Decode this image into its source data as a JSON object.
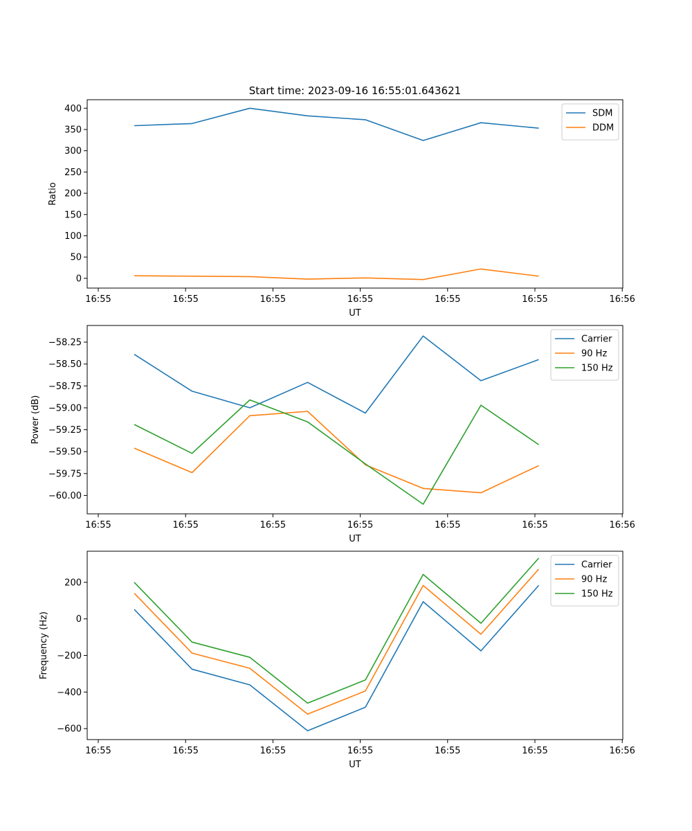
{
  "title": "Start time: 2023-09-16 16:55:01.643621",
  "x_tick_labels": [
    "16:55",
    "16:55",
    "16:55",
    "16:55",
    "16:55",
    "16:55",
    "16:55",
    "16:56"
  ],
  "chart_data": [
    {
      "type": "line",
      "title": "Start time: 2023-09-16 16:55:01.643621",
      "xlabel": "UT",
      "ylabel": "Ratio",
      "x": [
        1,
        2,
        3,
        4,
        5,
        6,
        7,
        8
      ],
      "xlim": [
        0.185,
        9.455
      ],
      "ylim": [
        -23,
        420
      ],
      "yticks": [
        0,
        50,
        100,
        150,
        200,
        250,
        300,
        350,
        400
      ],
      "ytick_labels": [
        "0",
        "50",
        "100",
        "150",
        "200",
        "250",
        "300",
        "350",
        "400"
      ],
      "legend_position": "upper-right",
      "series": [
        {
          "name": "SDM",
          "color": "#1f77b4",
          "values": [
            359,
            364,
            400,
            382,
            373,
            324,
            366,
            353
          ]
        },
        {
          "name": "DDM",
          "color": "#ff7f0e",
          "values": [
            6,
            5,
            4,
            -2,
            1,
            -3,
            22,
            5
          ]
        }
      ]
    },
    {
      "type": "line",
      "title": "",
      "xlabel": "UT",
      "ylabel": "Power (dB)",
      "x": [
        1,
        2,
        3,
        4,
        5,
        6,
        7,
        8
      ],
      "xlim": [
        0.185,
        9.455
      ],
      "ylim": [
        -60.21,
        -58.06
      ],
      "yticks": [
        -60.0,
        -59.75,
        -59.5,
        -59.25,
        -59.0,
        -58.75,
        -58.5,
        -58.25
      ],
      "ytick_labels": [
        "−60.00",
        "−59.75",
        "−59.50",
        "−59.25",
        "−59.00",
        "−58.75",
        "−58.50",
        "−58.25"
      ],
      "legend_position": "upper-right",
      "series": [
        {
          "name": "Carrier",
          "color": "#1f77b4",
          "values": [
            -58.39,
            -58.81,
            -59.0,
            -58.71,
            -59.06,
            -58.18,
            -58.69,
            -58.45
          ]
        },
        {
          "name": "90 Hz",
          "color": "#ff7f0e",
          "values": [
            -59.46,
            -59.74,
            -59.09,
            -59.04,
            -59.65,
            -59.92,
            -59.97,
            -59.66
          ]
        },
        {
          "name": "150 Hz",
          "color": "#2ca02c",
          "values": [
            -59.19,
            -59.52,
            -58.91,
            -59.16,
            -59.64,
            -60.1,
            -58.97,
            -59.42
          ]
        }
      ]
    },
    {
      "type": "line",
      "title": "",
      "xlabel": "UT",
      "ylabel": "Frequency (Hz)",
      "x": [
        1,
        2,
        3,
        4,
        5,
        6,
        7,
        8
      ],
      "xlim": [
        0.185,
        9.455
      ],
      "ylim": [
        -660,
        370
      ],
      "yticks": [
        -600,
        -400,
        -200,
        0,
        200
      ],
      "ytick_labels": [
        "−600",
        "−400",
        "−200",
        "0",
        "200"
      ],
      "legend_position": "upper-right",
      "series": [
        {
          "name": "Carrier",
          "color": "#1f77b4",
          "values": [
            52,
            -275,
            -361,
            -612,
            -483,
            94,
            -175,
            183
          ]
        },
        {
          "name": "90 Hz",
          "color": "#ff7f0e",
          "values": [
            140,
            -187,
            -270,
            -521,
            -394,
            183,
            -84,
            272
          ]
        },
        {
          "name": "150 Hz",
          "color": "#2ca02c",
          "values": [
            200,
            -127,
            -210,
            -461,
            -334,
            243,
            -24,
            332
          ]
        }
      ]
    }
  ]
}
